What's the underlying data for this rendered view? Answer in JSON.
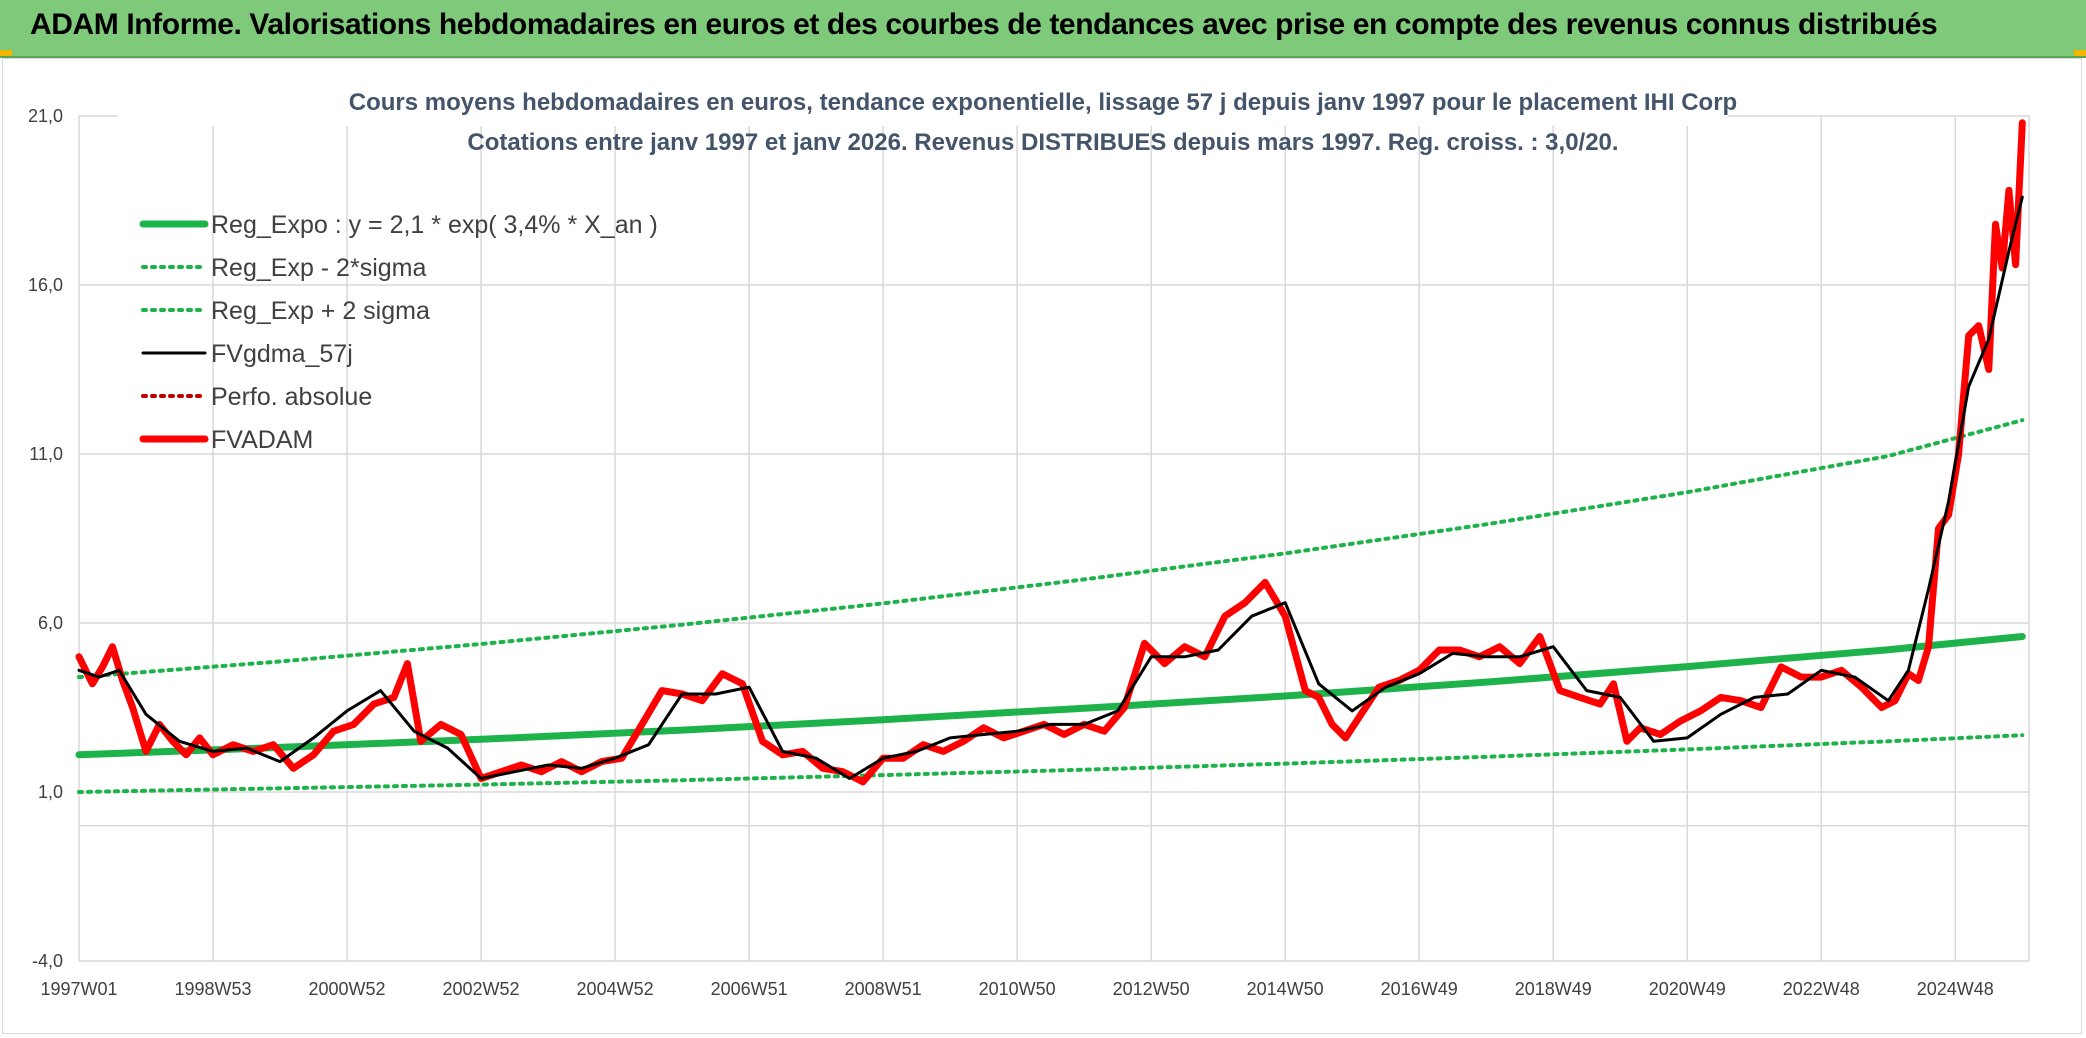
{
  "header": {
    "title": "ADAM Informe. Valorisations hebdomadaires en euros et des courbes de tendances avec prise en compte des revenus connus distribués"
  },
  "chart_data": {
    "type": "line",
    "title": "Cours moyens hebdomadaires en euros, tendance exponentielle, lissage 57 j depuis janv 1997 pour le placement IHI Corp",
    "subtitle": "Cotations entre janv 1997 et janv 2026. Revenus DISTRIBUES depuis mars 1997. Reg. croiss. : 3,0/20.",
    "xlabel": "",
    "ylabel": "",
    "ylim": [
      -4,
      21
    ],
    "y_ticks": [
      "-4,0",
      "1,0",
      "6,0",
      "11,0",
      "16,0",
      "21,0"
    ],
    "y_tick_values": [
      -4,
      1,
      6,
      11,
      16,
      21
    ],
    "x_range": [
      1997.0,
      2026.1
    ],
    "x_tick_labels": [
      "1997W01",
      "1998W53",
      "2000W52",
      "2002W52",
      "2004W52",
      "2006W51",
      "2008W51",
      "2010W50",
      "2012W50",
      "2014W50",
      "2016W49",
      "2018W49",
      "2020W49",
      "2022W48",
      "2024W48"
    ],
    "x_tick_years": [
      1997.0,
      1999.0,
      2001.0,
      2003.0,
      2005.0,
      2007.0,
      2009.0,
      2011.0,
      2013.0,
      2015.0,
      2017.0,
      2019.0,
      2021.0,
      2023.0,
      2025.0
    ],
    "grid": true,
    "legend_position": "top-left",
    "series": [
      {
        "name": "Reg_Expo : y = 2,1 * exp( 3,4% *  X_an )",
        "color": "#1db34a",
        "style": "solid-thick",
        "x": [
          1997.0,
          2000.0,
          2003.0,
          2006.0,
          2009.0,
          2012.0,
          2015.0,
          2018.0,
          2021.0,
          2024.0,
          2026.0
        ],
        "values": [
          2.1,
          2.32,
          2.56,
          2.83,
          3.14,
          3.48,
          3.84,
          4.25,
          4.71,
          5.21,
          5.6
        ]
      },
      {
        "name": "Reg_Exp - 2*sigma",
        "color": "#1db34a",
        "style": "dotted",
        "x": [
          1997.0,
          2000.0,
          2003.0,
          2006.0,
          2009.0,
          2012.0,
          2015.0,
          2018.0,
          2021.0,
          2024.0,
          2026.0
        ],
        "values": [
          1.0,
          1.11,
          1.22,
          1.35,
          1.5,
          1.66,
          1.84,
          2.04,
          2.26,
          2.5,
          2.68
        ]
      },
      {
        "name": "Reg_Exp + 2 sigma",
        "color": "#1db34a",
        "style": "dotted",
        "x": [
          1997.0,
          2000.0,
          2003.0,
          2006.0,
          2009.0,
          2012.0,
          2015.0,
          2018.0,
          2021.0,
          2024.0,
          2026.0
        ],
        "values": [
          4.4,
          4.86,
          5.38,
          5.95,
          6.58,
          7.29,
          8.06,
          8.92,
          9.87,
          10.94,
          12.0
        ]
      },
      {
        "name": "FVgdma_57j",
        "color": "#000000",
        "style": "solid",
        "x": [
          1997.0,
          1997.3,
          1997.6,
          1998.0,
          1998.5,
          1999.0,
          1999.5,
          2000.0,
          2000.5,
          2001.0,
          2001.5,
          2002.0,
          2002.5,
          2003.0,
          2003.5,
          2004.0,
          2004.5,
          2005.0,
          2005.5,
          2006.0,
          2006.5,
          2007.0,
          2007.5,
          2008.0,
          2008.5,
          2009.0,
          2009.5,
          2010.0,
          2010.5,
          2011.0,
          2011.5,
          2012.0,
          2012.5,
          2013.0,
          2013.5,
          2014.0,
          2014.5,
          2015.0,
          2015.5,
          2016.0,
          2016.5,
          2017.0,
          2017.5,
          2018.0,
          2018.5,
          2019.0,
          2019.5,
          2020.0,
          2020.5,
          2021.0,
          2021.5,
          2022.0,
          2022.5,
          2023.0,
          2023.5,
          2024.0,
          2024.3,
          2024.6,
          2024.9,
          2025.2,
          2025.5,
          2025.8,
          2026.0
        ],
        "values": [
          4.6,
          4.4,
          4.6,
          3.3,
          2.5,
          2.2,
          2.3,
          1.9,
          2.6,
          3.4,
          4.0,
          2.8,
          2.3,
          1.4,
          1.6,
          1.8,
          1.7,
          2.0,
          2.4,
          3.9,
          3.9,
          4.1,
          2.2,
          2.0,
          1.4,
          2.0,
          2.2,
          2.6,
          2.7,
          2.8,
          3.0,
          3.0,
          3.4,
          5.0,
          5.0,
          5.2,
          6.2,
          6.6,
          4.2,
          3.4,
          4.1,
          4.5,
          5.1,
          5.0,
          5.0,
          5.3,
          4.0,
          3.8,
          2.5,
          2.6,
          3.3,
          3.8,
          3.9,
          4.6,
          4.4,
          3.7,
          4.6,
          7.0,
          9.6,
          13.0,
          14.4,
          17.0,
          18.6
        ]
      },
      {
        "name": "Perfo. absolue",
        "color": "#c00000",
        "style": "dotted",
        "x": [],
        "values": []
      },
      {
        "name": "FVADAM",
        "color": "#ff0000",
        "style": "solid-thick",
        "x": [
          1997.0,
          1997.2,
          1997.35,
          1997.5,
          1997.65,
          1997.8,
          1998.0,
          1998.2,
          1998.4,
          1998.6,
          1998.8,
          1999.0,
          1999.3,
          1999.6,
          1999.9,
          2000.2,
          2000.5,
          2000.8,
          2001.1,
          2001.4,
          2001.7,
          2001.9,
          2002.1,
          2002.4,
          2002.7,
          2003.0,
          2003.3,
          2003.6,
          2003.9,
          2004.2,
          2004.5,
          2004.8,
          2005.1,
          2005.4,
          2005.7,
          2006.0,
          2006.3,
          2006.6,
          2006.9,
          2007.2,
          2007.5,
          2007.8,
          2008.1,
          2008.4,
          2008.7,
          2009.0,
          2009.3,
          2009.6,
          2009.9,
          2010.2,
          2010.5,
          2010.8,
          2011.1,
          2011.4,
          2011.7,
          2012.0,
          2012.3,
          2012.6,
          2012.9,
          2013.2,
          2013.5,
          2013.8,
          2014.1,
          2014.4,
          2014.7,
          2015.0,
          2015.3,
          2015.5,
          2015.7,
          2015.9,
          2016.1,
          2016.4,
          2016.7,
          2017.0,
          2017.3,
          2017.6,
          2017.9,
          2018.2,
          2018.5,
          2018.8,
          2019.1,
          2019.4,
          2019.7,
          2019.9,
          2020.1,
          2020.3,
          2020.6,
          2020.9,
          2021.2,
          2021.5,
          2021.8,
          2022.1,
          2022.4,
          2022.7,
          2023.0,
          2023.3,
          2023.6,
          2023.9,
          2024.1,
          2024.3,
          2024.45,
          2024.6,
          2024.75,
          2024.9,
          2025.05,
          2025.2,
          2025.35,
          2025.5,
          2025.6,
          2025.7,
          2025.8,
          2025.9,
          2026.0
        ],
        "values": [
          5.0,
          4.2,
          4.7,
          5.3,
          4.3,
          3.5,
          2.2,
          3.0,
          2.5,
          2.1,
          2.6,
          2.1,
          2.4,
          2.2,
          2.4,
          1.7,
          2.1,
          2.8,
          3.0,
          3.6,
          3.8,
          4.8,
          2.5,
          3.0,
          2.7,
          1.4,
          1.6,
          1.8,
          1.6,
          1.9,
          1.6,
          1.9,
          2.0,
          3.0,
          4.0,
          3.9,
          3.7,
          4.5,
          4.2,
          2.5,
          2.1,
          2.2,
          1.7,
          1.6,
          1.3,
          2.0,
          2.0,
          2.4,
          2.2,
          2.5,
          2.9,
          2.6,
          2.8,
          3.0,
          2.7,
          3.0,
          2.8,
          3.5,
          5.4,
          4.8,
          5.3,
          5.0,
          6.2,
          6.6,
          7.2,
          6.2,
          4.0,
          3.8,
          3.0,
          2.6,
          3.2,
          4.1,
          4.3,
          4.6,
          5.2,
          5.2,
          5.0,
          5.3,
          4.8,
          5.6,
          4.0,
          3.8,
          3.6,
          4.2,
          2.5,
          2.9,
          2.7,
          3.1,
          3.4,
          3.8,
          3.7,
          3.5,
          4.7,
          4.4,
          4.4,
          4.6,
          4.1,
          3.5,
          3.7,
          4.5,
          4.3,
          5.3,
          8.8,
          9.2,
          11.0,
          14.5,
          14.8,
          13.5,
          17.8,
          16.5,
          18.8,
          16.6,
          20.8
        ]
      }
    ]
  }
}
